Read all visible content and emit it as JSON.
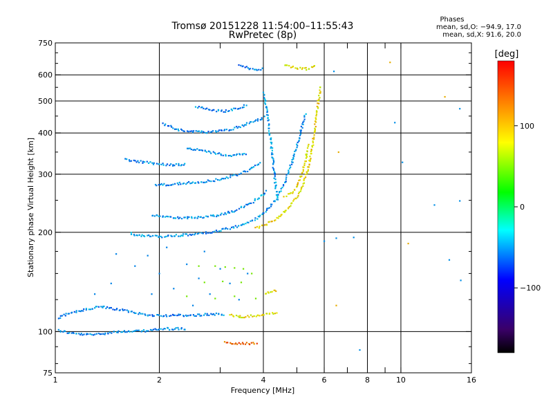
{
  "header": {
    "title_line1": "Tromsø 20151228 11:54:00–11:55:43",
    "title_line2": "RwPretec (8p)",
    "phase_heading": "Phases",
    "phase_o": "mean, sd,O: −94.9, 17.0",
    "phase_x": "mean, sd,X:  91.6, 20.0"
  },
  "chart_data": {
    "type": "scatter",
    "xlabel": "Frequency [MHz]",
    "ylabel": "Stationary phase Virtual Height [km]",
    "x_scale": "log",
    "y_scale": "log",
    "xlim": [
      1,
      16
    ],
    "ylim": [
      75,
      750
    ],
    "x_ticks": [
      1,
      2,
      3,
      4,
      5,
      6,
      7,
      8,
      9,
      10,
      16
    ],
    "x_tick_labels": [
      "1",
      "2",
      "",
      "4",
      "",
      "6",
      "",
      "8",
      "",
      "10",
      "16"
    ],
    "x_major_gridlines": [
      2,
      4,
      6,
      8,
      10
    ],
    "y_ticks": [
      75,
      100,
      200,
      300,
      400,
      500,
      600,
      750
    ],
    "y_tick_labels": [
      "75",
      "100",
      "200",
      "300",
      "400",
      "500",
      "600",
      "750"
    ],
    "y_major_gridlines": [
      100,
      200,
      300,
      400,
      500,
      600
    ],
    "grid": true,
    "colorbar": {
      "label": "[deg]",
      "range": [
        -180,
        180
      ],
      "ticks": [
        100,
        0,
        -100
      ],
      "tick_labels": [
        "100",
        "0",
        "−100"
      ],
      "colors": [
        "#000000",
        "#3a0068",
        "#0000ff",
        "#00ffff",
        "#00ff00",
        "#ffff00",
        "#ff8000",
        "#ff0000"
      ]
    },
    "series": [
      {
        "phase_deg": -95,
        "trace_type": "curve",
        "points": [
          [
            1.02,
            101
          ],
          [
            1.1,
            99
          ],
          [
            1.2,
            98
          ],
          [
            1.3,
            98
          ],
          [
            1.4,
            99
          ],
          [
            1.5,
            100
          ],
          [
            1.7,
            100
          ],
          [
            1.9,
            101
          ],
          [
            2.1,
            102
          ],
          [
            2.4,
            102
          ]
        ]
      },
      {
        "phase_deg": -95,
        "trace_type": "curve",
        "points": [
          [
            1.02,
            110
          ],
          [
            1.1,
            114
          ],
          [
            1.2,
            116
          ],
          [
            1.35,
            119
          ],
          [
            1.5,
            117
          ],
          [
            1.7,
            114
          ],
          [
            1.9,
            112
          ],
          [
            2.2,
            112
          ],
          [
            2.5,
            112
          ],
          [
            2.9,
            113
          ],
          [
            3.1,
            113
          ]
        ]
      },
      {
        "phase_deg": -90,
        "trace_type": "curve",
        "points": [
          [
            1.65,
            198
          ],
          [
            1.8,
            195
          ],
          [
            2.0,
            194
          ],
          [
            2.2,
            195
          ],
          [
            2.5,
            197
          ],
          [
            2.8,
            200
          ],
          [
            3.1,
            204
          ],
          [
            3.4,
            209
          ],
          [
            3.7,
            216
          ],
          [
            4.0,
            228
          ],
          [
            4.2,
            240
          ],
          [
            4.4,
            258
          ],
          [
            4.6,
            282
          ],
          [
            4.8,
            318
          ],
          [
            5.0,
            365
          ],
          [
            5.15,
            410
          ],
          [
            5.3,
            460
          ]
        ]
      },
      {
        "phase_deg": -90,
        "trace_type": "curve",
        "points": [
          [
            1.9,
            226
          ],
          [
            2.1,
            223
          ],
          [
            2.4,
            221
          ],
          [
            2.7,
            222
          ],
          [
            3.0,
            226
          ],
          [
            3.3,
            232
          ],
          [
            3.6,
            242
          ],
          [
            3.9,
            255
          ],
          [
            4.1,
            268
          ]
        ]
      },
      {
        "phase_deg": -92,
        "trace_type": "curve",
        "points": [
          [
            1.95,
            278
          ],
          [
            2.2,
            280
          ],
          [
            2.5,
            283
          ],
          [
            2.8,
            286
          ],
          [
            3.1,
            292
          ],
          [
            3.4,
            300
          ],
          [
            3.7,
            312
          ],
          [
            3.95,
            326
          ]
        ]
      },
      {
        "phase_deg": -92,
        "trace_type": "curve",
        "points": [
          [
            1.6,
            332
          ],
          [
            1.8,
            326
          ],
          [
            2.0,
            322
          ],
          [
            2.2,
            320
          ],
          [
            2.4,
            322
          ]
        ]
      },
      {
        "phase_deg": -95,
        "trace_type": "curve",
        "points": [
          [
            2.05,
            425
          ],
          [
            2.3,
            408
          ],
          [
            2.6,
            402
          ],
          [
            2.9,
            404
          ],
          [
            3.2,
            410
          ],
          [
            3.5,
            422
          ],
          [
            3.8,
            436
          ],
          [
            4.05,
            448
          ]
        ]
      },
      {
        "phase_deg": -95,
        "trace_type": "curve",
        "points": [
          [
            2.55,
            480
          ],
          [
            2.8,
            470
          ],
          [
            3.1,
            466
          ],
          [
            3.4,
            475
          ],
          [
            3.6,
            488
          ]
        ]
      },
      {
        "phase_deg": -90,
        "trace_type": "curve",
        "points": [
          [
            2.4,
            360
          ],
          [
            2.7,
            352
          ],
          [
            3.0,
            345
          ],
          [
            3.3,
            342
          ],
          [
            3.6,
            346
          ]
        ]
      },
      {
        "phase_deg": -88,
        "trace_type": "curve",
        "points": [
          [
            4.0,
            530
          ],
          [
            4.1,
            470
          ],
          [
            4.15,
            420
          ],
          [
            4.2,
            380
          ],
          [
            4.25,
            340
          ],
          [
            4.3,
            300
          ],
          [
            4.35,
            270
          ],
          [
            4.4,
            250
          ]
        ]
      },
      {
        "phase_deg": 100,
        "trace_type": "curve",
        "points": [
          [
            3.2,
            112
          ],
          [
            3.5,
            111
          ],
          [
            3.8,
            112
          ],
          [
            4.1,
            113
          ],
          [
            4.4,
            114
          ]
        ]
      },
      {
        "phase_deg": 105,
        "trace_type": "curve",
        "points": [
          [
            3.8,
            206
          ],
          [
            4.1,
            212
          ],
          [
            4.4,
            222
          ],
          [
            4.7,
            236
          ],
          [
            4.95,
            252
          ],
          [
            5.15,
            272
          ],
          [
            5.3,
            296
          ],
          [
            5.45,
            330
          ],
          [
            5.55,
            370
          ],
          [
            5.65,
            420
          ],
          [
            5.72,
            470
          ],
          [
            5.8,
            520
          ],
          [
            5.85,
            560
          ]
        ]
      },
      {
        "phase_deg": 105,
        "trace_type": "curve",
        "points": [
          [
            4.6,
            258
          ],
          [
            4.8,
            262
          ],
          [
            5.0,
            276
          ],
          [
            5.15,
            298
          ],
          [
            5.3,
            330
          ],
          [
            5.4,
            370
          ]
        ]
      },
      {
        "phase_deg": 100,
        "trace_type": "curve",
        "points": [
          [
            4.05,
            130
          ],
          [
            4.2,
            132
          ],
          [
            4.4,
            133
          ]
        ]
      },
      {
        "phase_deg": 145,
        "trace_type": "curve",
        "points": [
          [
            3.1,
            93
          ],
          [
            3.4,
            92
          ],
          [
            3.7,
            92
          ],
          [
            3.85,
            92
          ]
        ]
      },
      {
        "phase_deg": -100,
        "trace_type": "curve",
        "points": [
          [
            3.4,
            640
          ],
          [
            3.6,
            630
          ],
          [
            3.8,
            622
          ],
          [
            4.0,
            628
          ]
        ]
      },
      {
        "phase_deg": 100,
        "trace_type": "curve",
        "points": [
          [
            4.6,
            642
          ],
          [
            5.0,
            630
          ],
          [
            5.4,
            625
          ],
          [
            5.7,
            640
          ]
        ]
      },
      {
        "phase_deg": -95,
        "trace_type": "scatter",
        "points": [
          [
            1.5,
            172
          ],
          [
            1.7,
            158
          ],
          [
            1.85,
            170
          ],
          [
            2.0,
            150
          ],
          [
            2.2,
            135
          ],
          [
            2.4,
            160
          ],
          [
            2.6,
            145
          ],
          [
            2.8,
            130
          ],
          [
            3.0,
            155
          ],
          [
            3.2,
            140
          ],
          [
            3.4,
            125
          ],
          [
            1.9,
            130
          ],
          [
            2.5,
            120
          ],
          [
            3.6,
            150
          ],
          [
            1.3,
            130
          ],
          [
            1.45,
            140
          ],
          [
            2.1,
            180
          ],
          [
            2.7,
            175
          ]
        ]
      },
      {
        "phase_deg": 60,
        "trace_type": "scatter",
        "points": [
          [
            2.6,
            158
          ],
          [
            2.9,
            158
          ],
          [
            3.1,
            157
          ],
          [
            3.3,
            156
          ],
          [
            3.5,
            155
          ],
          [
            3.7,
            150
          ],
          [
            2.7,
            141
          ],
          [
            3.05,
            142
          ],
          [
            3.45,
            141
          ],
          [
            2.4,
            128
          ],
          [
            2.9,
            126
          ],
          [
            3.3,
            128
          ],
          [
            3.8,
            126
          ]
        ]
      },
      {
        "phase_deg": -90,
        "trace_type": "scatter",
        "points": [
          [
            6.0,
            188
          ],
          [
            6.5,
            192
          ],
          [
            7.3,
            193
          ],
          [
            7.6,
            88
          ],
          [
            9.6,
            430
          ],
          [
            10.1,
            326
          ],
          [
            12.5,
            242
          ],
          [
            13.8,
            165
          ],
          [
            14.8,
            249
          ],
          [
            14.9,
            143
          ],
          [
            14.8,
            474
          ],
          [
            6.4,
            615
          ]
        ]
      },
      {
        "phase_deg": 120,
        "trace_type": "scatter",
        "points": [
          [
            6.5,
            120
          ],
          [
            9.3,
            655
          ],
          [
            13.4,
            515
          ],
          [
            10.5,
            185
          ],
          [
            6.6,
            350
          ]
        ]
      }
    ]
  }
}
